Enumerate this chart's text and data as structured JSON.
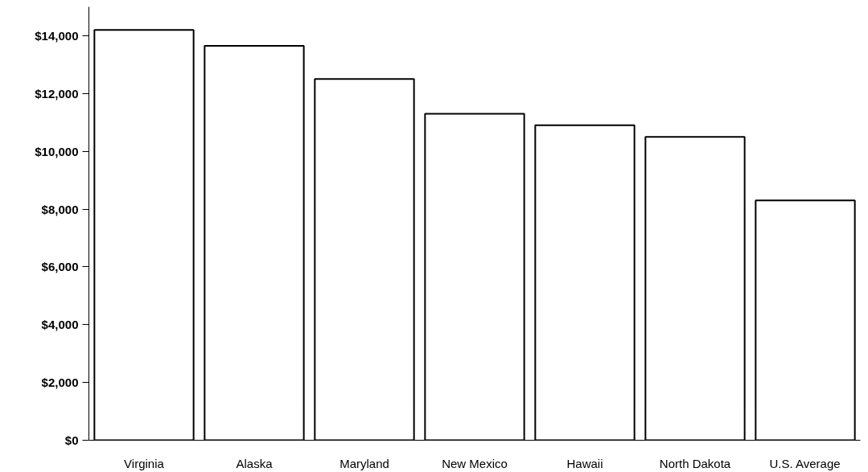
{
  "chart_data": {
    "type": "bar",
    "categories": [
      "Virginia",
      "Alaska",
      "Maryland",
      "New Mexico",
      "Hawaii",
      "North Dakota",
      "U.S. Average"
    ],
    "values": [
      14200,
      13650,
      12500,
      11300,
      10900,
      10500,
      8300
    ],
    "color": "#ffffff",
    "ylim": [
      0,
      15000
    ],
    "yticks": [
      {
        "value": 0,
        "label": "$0"
      },
      {
        "value": 2000,
        "label": "$2,000"
      },
      {
        "value": 4000,
        "label": "$4,000"
      },
      {
        "value": 6000,
        "label": "$6,000"
      },
      {
        "value": 8000,
        "label": "$8,000"
      },
      {
        "value": 10000,
        "label": "$10,000"
      },
      {
        "value": 12000,
        "label": "$12,000"
      },
      {
        "value": 14000,
        "label": "$14,000"
      }
    ],
    "grid": false
  }
}
